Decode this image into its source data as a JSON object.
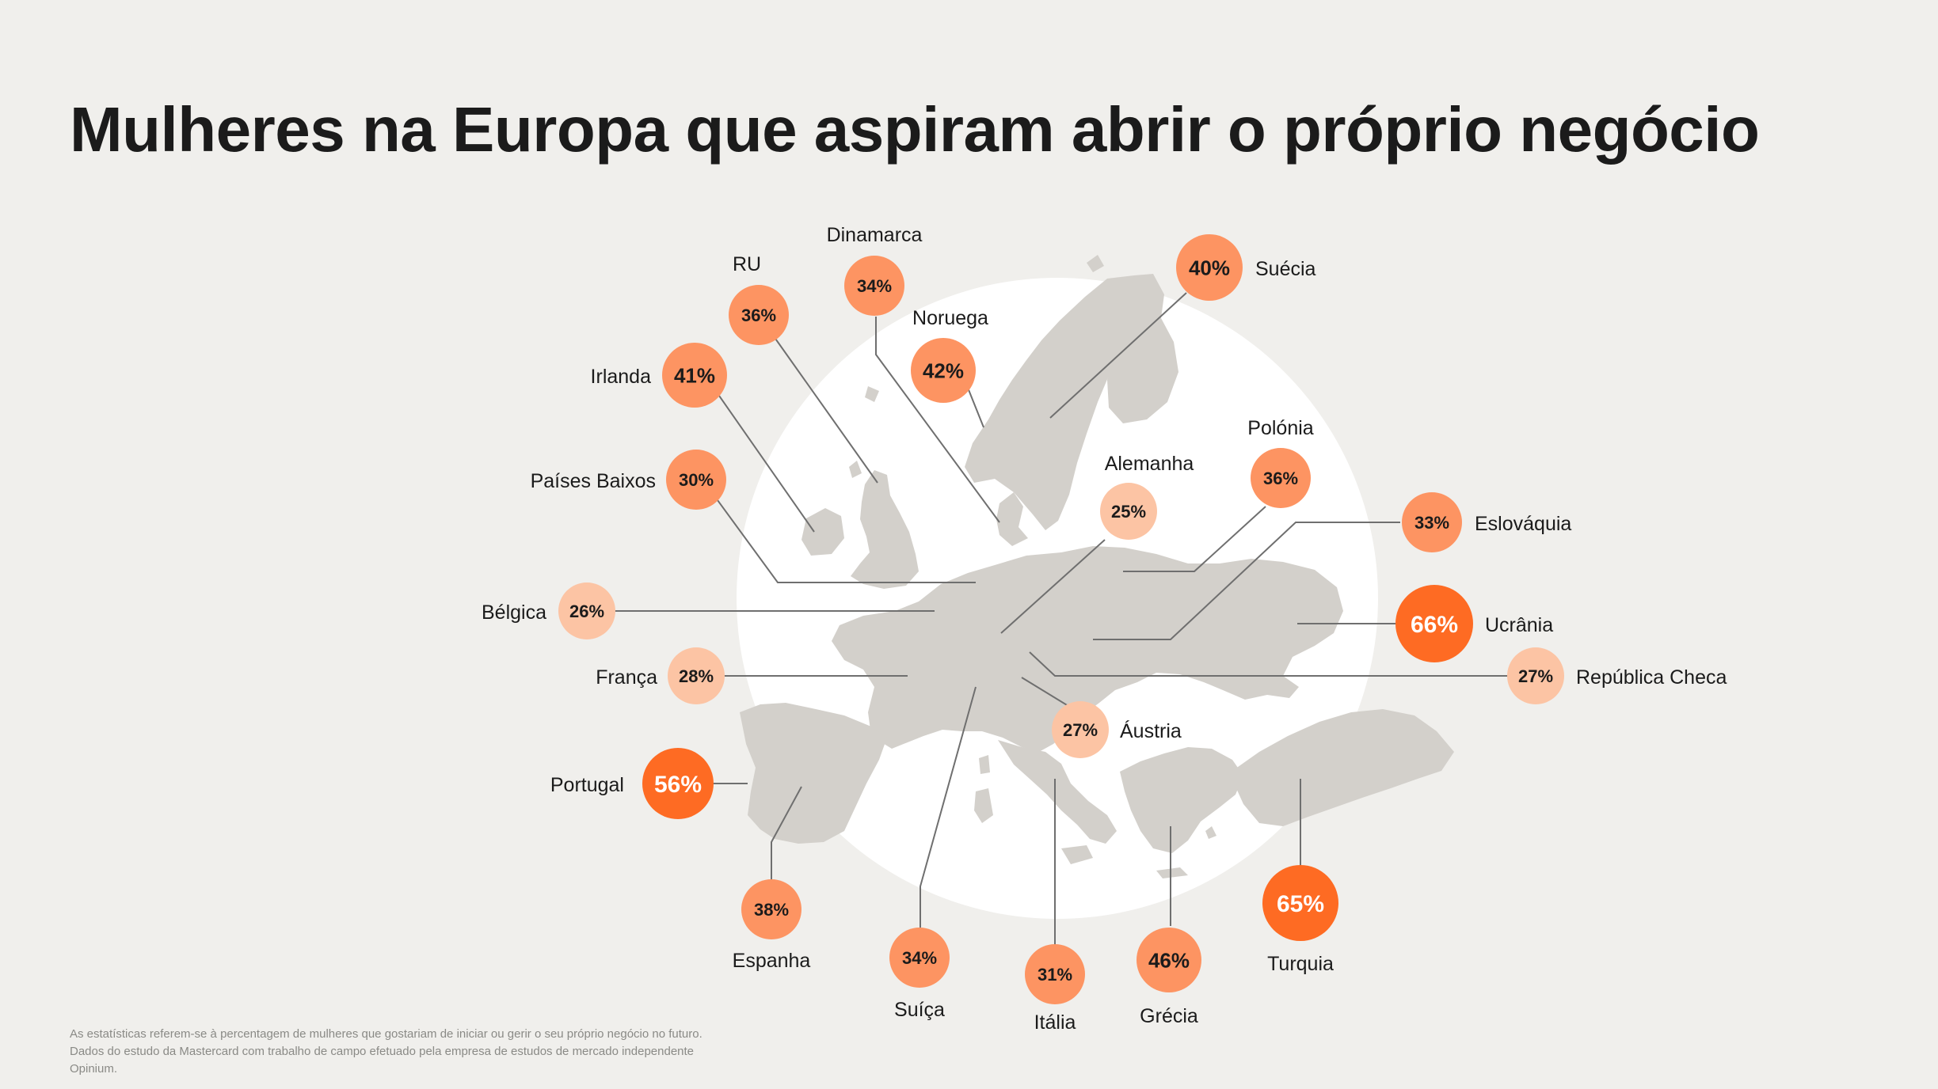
{
  "title": "Mulheres na Europa que aspiram abrir o próprio negócio",
  "footnote": "As estatísticas referem-se à percentagem de mulheres que gostariam de iniciar ou gerir o seu próprio negócio no futuro. Dados do estudo da Mastercard com trabalho de campo efetuado pela empresa de estudos de mercado independente Opinium.",
  "colors": {
    "background": "#f0efec",
    "circle": "#ffffff",
    "land": "#d3d0cb",
    "leader_line": "#6f6f6f",
    "tier_low": "#fcc4a4",
    "tier_mid": "#fd9462",
    "tier_high": "#fe6b23"
  },
  "countries": [
    {
      "name": "RU",
      "value": "36%"
    },
    {
      "name": "Dinamarca",
      "value": "34%"
    },
    {
      "name": "Noruega",
      "value": "42%"
    },
    {
      "name": "Suécia",
      "value": "40%"
    },
    {
      "name": "Irlanda",
      "value": "41%"
    },
    {
      "name": "Países Baixos",
      "value": "30%"
    },
    {
      "name": "Alemanha",
      "value": "25%"
    },
    {
      "name": "Polónia",
      "value": "36%"
    },
    {
      "name": "Eslováquia",
      "value": "33%"
    },
    {
      "name": "Bélgica",
      "value": "26%"
    },
    {
      "name": "Ucrânia",
      "value": "66%"
    },
    {
      "name": "França",
      "value": "28%"
    },
    {
      "name": "República Checa",
      "value": "27%"
    },
    {
      "name": "Áustria",
      "value": "27%"
    },
    {
      "name": "Portugal",
      "value": "56%"
    },
    {
      "name": "Espanha",
      "value": "38%"
    },
    {
      "name": "Suíça",
      "value": "34%"
    },
    {
      "name": "Itália",
      "value": "31%"
    },
    {
      "name": "Grécia",
      "value": "46%"
    },
    {
      "name": "Turquia",
      "value": "65%"
    }
  ]
}
